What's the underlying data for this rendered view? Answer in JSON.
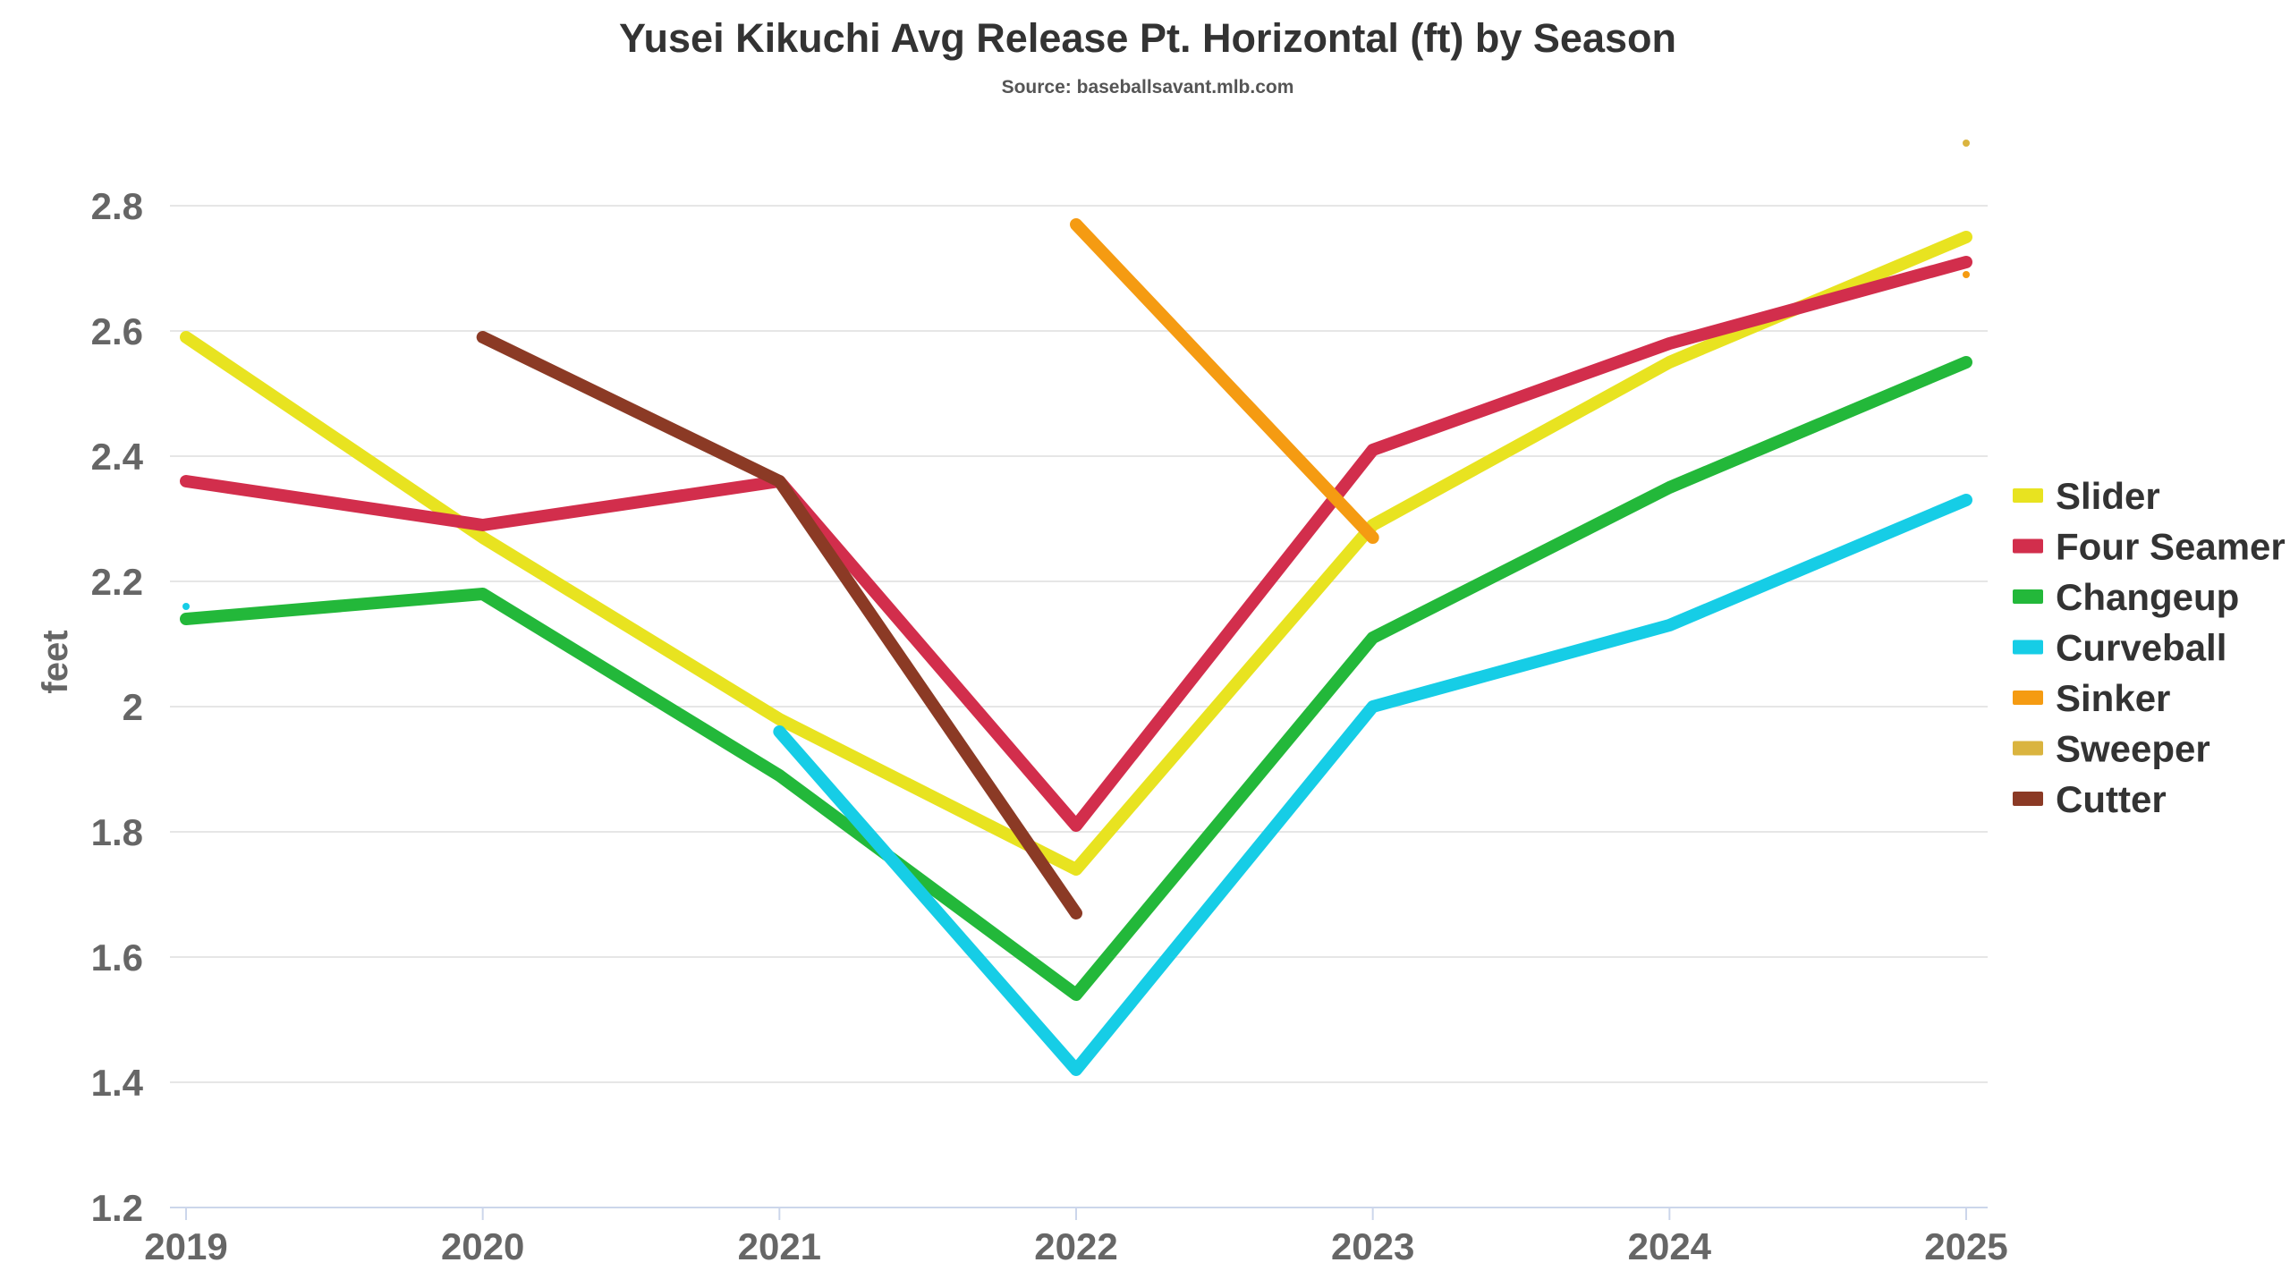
{
  "chart_data": {
    "type": "line",
    "title": "Yusei Kikuchi Avg Release Pt. Horizontal (ft) by Season",
    "subtitle": "Source: baseballsavant.mlb.com",
    "ylabel": "feet",
    "xlabel": "",
    "categories": [
      "2019",
      "2020",
      "2021",
      "2022",
      "2023",
      "2024",
      "2025"
    ],
    "ylim": [
      1.2,
      2.9
    ],
    "yticks": [
      1.2,
      1.4,
      1.6,
      1.8,
      2,
      2.2,
      2.4,
      2.6,
      2.8
    ],
    "ytick_labels": [
      "1.2",
      "1.4",
      "1.6",
      "1.8",
      "2",
      "2.2",
      "2.4",
      "2.6",
      "2.8"
    ],
    "grid": true,
    "legend_position": "right",
    "series": [
      {
        "name": "Slider",
        "color": "#e8e320",
        "values": [
          2.59,
          2.27,
          1.98,
          1.74,
          2.29,
          2.55,
          2.75
        ]
      },
      {
        "name": "Four Seamer",
        "color": "#d22e4c",
        "values": [
          2.36,
          2.29,
          2.36,
          1.81,
          2.41,
          2.58,
          2.71
        ]
      },
      {
        "name": "Changeup",
        "color": "#23b83a",
        "values": [
          2.14,
          2.18,
          1.89,
          1.54,
          2.11,
          2.35,
          2.55
        ]
      },
      {
        "name": "Curveball",
        "color": "#16cde6",
        "values": [
          2.16,
          null,
          1.96,
          1.42,
          2.0,
          2.13,
          2.33
        ]
      },
      {
        "name": "Sinker",
        "color": "#f59b12",
        "values": [
          null,
          null,
          null,
          2.77,
          2.27,
          null,
          2.69
        ]
      },
      {
        "name": "Sweeper",
        "color": "#dab43f",
        "values": [
          null,
          null,
          null,
          null,
          null,
          null,
          2.9
        ]
      },
      {
        "name": "Cutter",
        "color": "#8b3a25",
        "values": [
          null,
          2.59,
          2.36,
          1.67,
          null,
          null,
          null
        ]
      }
    ]
  }
}
